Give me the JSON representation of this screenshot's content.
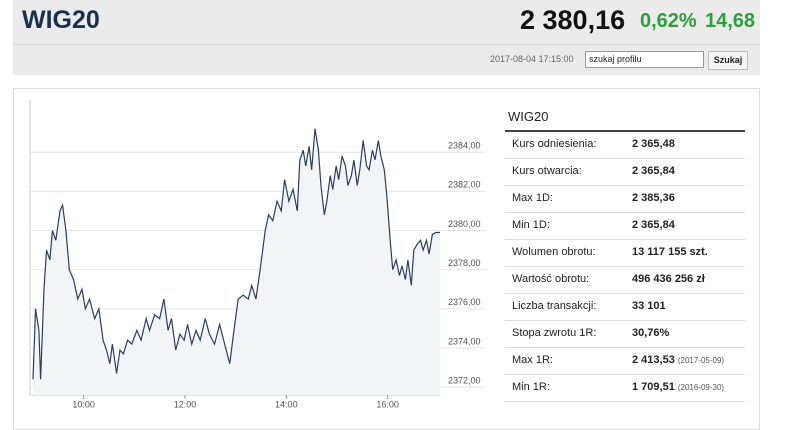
{
  "header": {
    "title": "WIG20",
    "price": "2 380,16",
    "change_pct": "0,62%",
    "change": "14,68"
  },
  "toolbar": {
    "timestamp": "2017-08-04 17:15:00",
    "search": "szukaj profilu",
    "button": "Szukaj"
  },
  "chart_data": {
    "type": "line",
    "x": [
      "09:00",
      "09:03",
      "09:07",
      "09:09",
      "09:13",
      "09:16",
      "09:20",
      "09:23",
      "09:27",
      "09:32",
      "09:35",
      "09:39",
      "09:43",
      "09:48",
      "09:53",
      "09:58",
      "10:02",
      "10:07",
      "10:13",
      "10:18",
      "10:23",
      "10:27",
      "10:31",
      "10:34",
      "10:39",
      "10:43",
      "10:47",
      "10:52",
      "10:57",
      "11:03",
      "11:08",
      "11:14",
      "11:18",
      "11:24",
      "11:30",
      "11:35",
      "11:40",
      "11:44",
      "11:49",
      "11:54",
      "11:59",
      "12:03",
      "12:08",
      "12:13",
      "12:18",
      "12:24",
      "12:29",
      "12:35",
      "12:41",
      "12:47",
      "12:53",
      "12:58",
      "13:03",
      "13:09",
      "13:15",
      "13:19",
      "13:24",
      "13:29",
      "13:35",
      "13:39",
      "13:44",
      "13:49",
      "13:54",
      "13:58",
      "14:03",
      "14:08",
      "14:13",
      "14:16",
      "14:20",
      "14:23",
      "14:27",
      "14:30",
      "14:34",
      "14:38",
      "14:41",
      "14:45",
      "14:48",
      "14:52",
      "14:55",
      "14:59",
      "15:02",
      "15:06",
      "15:10",
      "15:13",
      "15:17",
      "15:20",
      "15:24",
      "15:27",
      "15:31",
      "15:35",
      "15:38",
      "15:42",
      "15:45",
      "15:49",
      "15:52",
      "15:56",
      "15:59",
      "16:03",
      "16:06",
      "16:10",
      "16:14",
      "16:17",
      "16:21",
      "16:24",
      "16:28",
      "16:31",
      "16:35",
      "16:39",
      "16:42",
      "16:46",
      "16:49",
      "16:53",
      "16:57",
      "17:02"
    ],
    "series": [
      {
        "color": "#2d3e5a",
        "values": [
          2372.4,
          2376.0,
          2374.9,
          2372.4,
          2377.0,
          2379.0,
          2378.5,
          2380.0,
          2379.5,
          2381.0,
          2381.3,
          2380.0,
          2378.0,
          2377.5,
          2376.5,
          2377.0,
          2376.0,
          2376.5,
          2375.5,
          2376.0,
          2374.4,
          2373.9,
          2373.2,
          2374.2,
          2372.7,
          2373.9,
          2373.7,
          2374.4,
          2374.2,
          2374.9,
          2374.4,
          2375.5,
          2374.9,
          2375.7,
          2375.5,
          2376.5,
          2374.9,
          2375.5,
          2373.9,
          2374.7,
          2374.4,
          2375.2,
          2374.2,
          2374.9,
          2374.4,
          2375.5,
          2374.7,
          2374.2,
          2375.2,
          2374.2,
          2373.2,
          2374.9,
          2376.5,
          2376.7,
          2376.5,
          2377.2,
          2376.5,
          2378.0,
          2380.0,
          2380.8,
          2380.5,
          2381.5,
          2381.0,
          2382.6,
          2381.5,
          2382.1,
          2381.0,
          2383.6,
          2384.1,
          2383.3,
          2384.3,
          2383.1,
          2385.2,
          2384.1,
          2382.3,
          2380.8,
          2381.5,
          2382.8,
          2382.1,
          2383.3,
          2382.6,
          2383.8,
          2383.3,
          2382.3,
          2382.8,
          2383.6,
          2382.3,
          2383.1,
          2384.6,
          2383.3,
          2383.1,
          2384.1,
          2383.6,
          2384.6,
          2383.8,
          2383.1,
          2381.8,
          2379.5,
          2378.0,
          2378.5,
          2377.7,
          2378.2,
          2377.5,
          2378.5,
          2377.2,
          2379.0,
          2379.3,
          2379.5,
          2379.0,
          2379.5,
          2378.8,
          2379.8,
          2379.9,
          2379.9
        ]
      }
    ],
    "xlim": [
      "09:00",
      "17:02"
    ],
    "xticks": [
      "10:00",
      "12:00",
      "14:00",
      "16:00"
    ],
    "ylim": [
      2371.6,
      2385.9
    ],
    "yticks": [
      {
        "value": 2372,
        "label": "2372,00"
      },
      {
        "value": 2374,
        "label": "2374,00"
      },
      {
        "value": 2376,
        "label": "2376,00"
      },
      {
        "value": 2378,
        "label": "2378,00"
      },
      {
        "value": 2380,
        "label": "2380,00"
      },
      {
        "value": 2382,
        "label": "2382,00"
      },
      {
        "value": 2384,
        "label": "2384,00"
      }
    ],
    "grid": true,
    "area_fill": "#f3f4f6"
  },
  "table": {
    "title": "WIG20",
    "rows": [
      {
        "label": "Kurs odniesienia:",
        "value": "2 365,48"
      },
      {
        "label": "Kurs otwarcia:",
        "value": "2 365,84"
      },
      {
        "label": "Max 1D:",
        "value": "2 385,36"
      },
      {
        "label": "Min 1D:",
        "value": "2 365,84"
      },
      {
        "label": "Wolumen obrotu:",
        "value": "13 117 155 szt."
      },
      {
        "label": "Wartość obrotu:",
        "value": "496 436 256 zł"
      },
      {
        "label": "Liczba transakcji:",
        "value": "33 101"
      },
      {
        "label": "Stopa zwrotu 1R:",
        "value": "30,76%"
      },
      {
        "label": "Max 1R:",
        "value": "2 413,53",
        "note": "(2017-05-09)"
      },
      {
        "label": "Min 1R:",
        "value": "1 709,51",
        "note": "(2016-09-30)"
      }
    ]
  }
}
